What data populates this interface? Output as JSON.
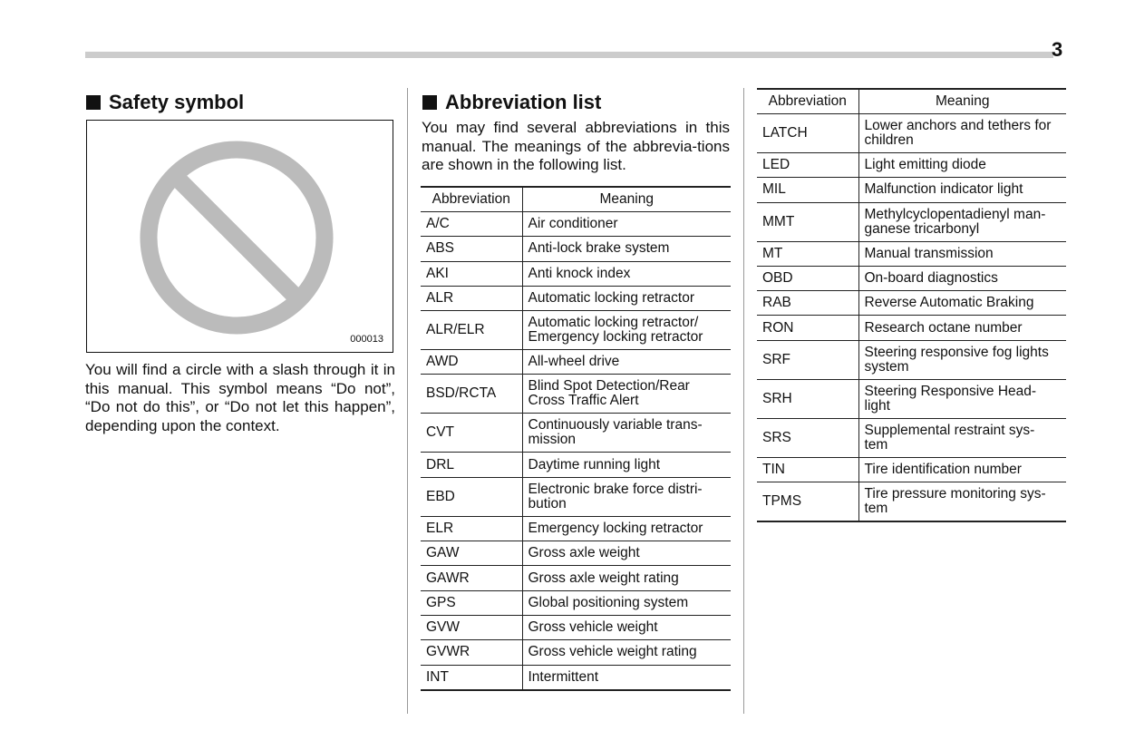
{
  "page_number": "3",
  "safety": {
    "title": "Safety symbol",
    "figure_code": "000013",
    "text": "You will find a circle with a slash through it in this manual. This symbol means “Do not”, “Do not do this”, or “Do not let this happen”, depending upon the context."
  },
  "abbrev": {
    "title": "Abbreviation list",
    "intro": "You may find several abbreviations in this manual. The meanings of the abbrevia-tions are shown in the following list.",
    "headers": [
      "Abbreviation",
      "Meaning"
    ],
    "table1": [
      [
        "A/C",
        "Air conditioner"
      ],
      [
        "ABS",
        "Anti-lock brake system"
      ],
      [
        "AKI",
        "Anti knock index"
      ],
      [
        "ALR",
        "Automatic locking retractor"
      ],
      [
        "ALR/ELR",
        "Automatic locking retractor/\nEmergency locking retractor"
      ],
      [
        "AWD",
        "All-wheel drive"
      ],
      [
        "BSD/RCTA",
        "Blind Spot Detection/Rear\nCross Traffic Alert"
      ],
      [
        "CVT",
        "Continuously variable trans-\nmission"
      ],
      [
        "DRL",
        "Daytime running light"
      ],
      [
        "EBD",
        "Electronic brake force distri-\nbution"
      ],
      [
        "ELR",
        "Emergency locking retractor"
      ],
      [
        "GAW",
        "Gross axle weight"
      ],
      [
        "GAWR",
        "Gross axle weight rating"
      ],
      [
        "GPS",
        "Global positioning system"
      ],
      [
        "GVW",
        "Gross vehicle weight"
      ],
      [
        "GVWR",
        "Gross vehicle weight rating"
      ],
      [
        "INT",
        "Intermittent"
      ]
    ],
    "table2": [
      [
        "LATCH",
        "Lower anchors and tethers for\nchildren"
      ],
      [
        "LED",
        "Light emitting diode"
      ],
      [
        "MIL",
        "Malfunction indicator light"
      ],
      [
        "MMT",
        "Methylcyclopentadienyl man-\nganese tricarbonyl"
      ],
      [
        "MT",
        "Manual transmission"
      ],
      [
        "OBD",
        "On-board diagnostics"
      ],
      [
        "RAB",
        "Reverse Automatic Braking"
      ],
      [
        "RON",
        "Research octane number"
      ],
      [
        "SRF",
        "Steering responsive fog lights\nsystem"
      ],
      [
        "SRH",
        "Steering Responsive Head-\nlight"
      ],
      [
        "SRS",
        "Supplemental restraint sys-\ntem"
      ],
      [
        "TIN",
        "Tire identification number"
      ],
      [
        "TPMS",
        "Tire pressure monitoring sys-\ntem"
      ]
    ]
  }
}
